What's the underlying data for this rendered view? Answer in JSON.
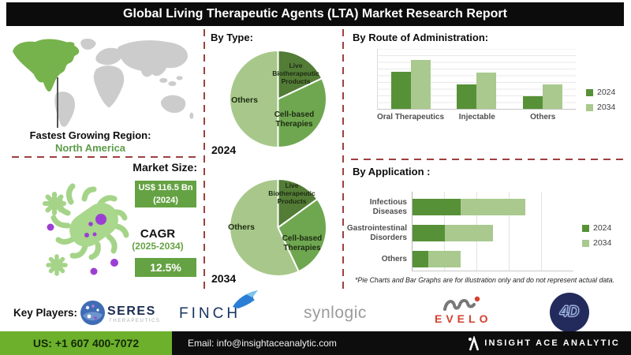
{
  "title": "Global Living Therapeutic Agents (LTA) Market Research Report",
  "region": {
    "label": "Fastest Growing Region:",
    "value": "North America"
  },
  "market": {
    "size_label": "Market Size:",
    "size_value": "US$ 116.5 Bn",
    "size_year": "(2024)",
    "cagr_label": "CAGR",
    "cagr_period": "(2025-2034)",
    "cagr_value": "12.5%"
  },
  "chart_data": [
    {
      "id": "by_type_2024",
      "type": "pie",
      "section_title": "By Type:",
      "year_label": "2024",
      "unit": "percent share (illustrative)",
      "slices": [
        {
          "label": "Live Biotherapeutic Products",
          "value": 18,
          "color": "#537c36"
        },
        {
          "label": "Cell-based Therapies",
          "value": 32,
          "color": "#6fa750"
        },
        {
          "label": "Others",
          "value": 50,
          "color": "#a7c88a"
        }
      ]
    },
    {
      "id": "by_type_2034",
      "type": "pie",
      "year_label": "2034",
      "unit": "percent share (illustrative)",
      "slices": [
        {
          "label": "Live Biotherapeutic Products",
          "value": 15,
          "color": "#537c36"
        },
        {
          "label": "Cell-based Therapies",
          "value": 28,
          "color": "#6fa750"
        },
        {
          "label": "Others",
          "value": 57,
          "color": "#a7c88a"
        }
      ]
    },
    {
      "id": "by_route",
      "type": "bar",
      "title": "By Route of Administration:",
      "categories": [
        "Oral Therapeutics",
        "Injectable",
        "Others"
      ],
      "series": [
        {
          "name": "2024",
          "color": "#579137",
          "values": [
            62,
            41,
            21
          ]
        },
        {
          "name": "2034",
          "color": "#a9c98e",
          "values": [
            82,
            61,
            41
          ]
        }
      ],
      "ylim": [
        0,
        100
      ],
      "grid": "horizontal",
      "legend_position": "right"
    },
    {
      "id": "by_application",
      "type": "bar-horizontal-stacked",
      "title": "By Application :",
      "categories": [
        "Infectious Diseases",
        "Gastrointestinal Disorders",
        "Others"
      ],
      "series": [
        {
          "name": "2024",
          "color": "#579137",
          "values": [
            1.5,
            1.0,
            0.5
          ]
        },
        {
          "name": "2034",
          "color": "#a9c98e",
          "values": [
            2.0,
            1.5,
            1.0
          ]
        }
      ],
      "xlim": [
        0,
        5
      ],
      "grid": "vertical",
      "legend_position": "right"
    }
  ],
  "disclaimer": "*Pie Charts and Bar Graphs are for illustration only and do not represent actual data.",
  "key_players": {
    "label": "Key Players:",
    "seres": {
      "name": "SERES",
      "sub": "THERAPEUTICS"
    },
    "finch": {
      "name": "FINCH"
    },
    "synlogic": {
      "name": "synlogic"
    },
    "evelo": {
      "name": "EVELO"
    },
    "fourd": {
      "name": "4D"
    }
  },
  "footer": {
    "phone": "US: +1 607 400-7072",
    "email": "Email: info@insightaceanalytic.com",
    "brand": "INSIGHT ACE ANALYTIC"
  },
  "colors": {
    "pie_dark_green": "#537c36",
    "pie_mid_green": "#6fa750",
    "pie_light_green": "#a7c88a",
    "series_2024": "#579137",
    "series_2034": "#a9c98e",
    "box_green": "#65a243",
    "footer_green": "#6cb02c",
    "dashed_separator": "#9e4040",
    "map_highlight_green": "#77b34d",
    "map_gray": "#cccccc",
    "microbe_green": "#a9d78c",
    "microbe_purple": "#9b3fd4"
  }
}
